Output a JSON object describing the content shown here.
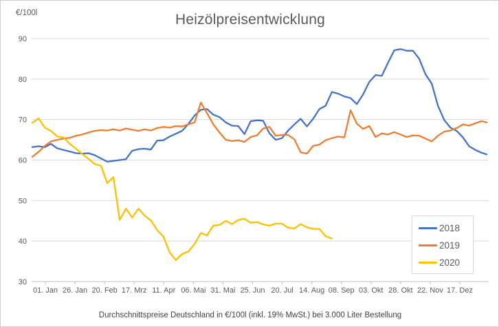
{
  "footer": {
    "caption": "Durchschnittspreise Deutschland in €/100l (inkl. 19% MwSt.) bei 3.000 Liter Bestellung"
  },
  "legend": {
    "items": [
      {
        "label": "2018",
        "color": "#4472C4"
      },
      {
        "label": "2019",
        "color": "#ED7D31"
      },
      {
        "label": "2020",
        "color": "#FFC000"
      }
    ]
  },
  "chart_data": {
    "type": "line",
    "title": "Heizölpreisentwicklung",
    "ylabel": "€/100l",
    "xlabel": "",
    "ylim": [
      30,
      90
    ],
    "y_ticks": [
      90,
      80,
      70,
      60,
      50,
      40,
      30
    ],
    "x_tick_labels": [
      "01. Jan",
      "26. Jan",
      "20. Feb",
      "17. Mrz",
      "11. Apr",
      "06. Mai",
      "31. Mai",
      "25. Jun",
      "20. Jul",
      "14. Aug",
      "08. Sep",
      "03. Okt",
      "28. Okt",
      "22. Nov",
      "17. Dez"
    ],
    "x_tick_interval_days": 25,
    "sample_interval_days": 5,
    "grid": "horizontal-only",
    "legend_position": "inside-right-bottom",
    "series": [
      {
        "name": "2018",
        "color": "#4472C4",
        "start_day": 0,
        "values": [
          63.2,
          63.4,
          63.2,
          64.0,
          62.9,
          62.5,
          62.1,
          61.7,
          61.6,
          61.7,
          61.2,
          60.4,
          59.6,
          59.8,
          60.0,
          60.2,
          62.3,
          62.7,
          62.8,
          62.6,
          64.8,
          64.9,
          65.8,
          66.5,
          67.2,
          68.9,
          71.0,
          72.4,
          72.6,
          71.2,
          70.6,
          69.3,
          68.5,
          68.4,
          66.4,
          69.6,
          69.8,
          69.7,
          66.6,
          65.0,
          65.4,
          67.3,
          68.8,
          70.2,
          68.3,
          70.2,
          72.6,
          73.4,
          76.8,
          76.4,
          75.7,
          75.3,
          73.8,
          76.2,
          79.3,
          81.0,
          80.8,
          84.0,
          87.1,
          87.4,
          87.0,
          87.0,
          85.0,
          81.2,
          78.9,
          73.4,
          69.9,
          68.0,
          67.2,
          65.6,
          63.4,
          62.5,
          61.8,
          61.4
        ]
      },
      {
        "name": "2019",
        "color": "#ED7D31",
        "start_day": 0,
        "values": [
          60.8,
          62.0,
          63.5,
          64.6,
          65.0,
          65.3,
          65.5,
          66.0,
          66.3,
          66.8,
          67.2,
          67.4,
          67.3,
          67.6,
          67.3,
          67.8,
          67.5,
          67.2,
          67.6,
          67.3,
          67.9,
          68.2,
          68.0,
          68.4,
          68.3,
          68.8,
          69.3,
          74.2,
          71.6,
          68.8,
          66.8,
          65.0,
          64.7,
          64.9,
          64.5,
          65.7,
          66.1,
          67.8,
          68.2,
          66.0,
          66.2,
          66.2,
          65.1,
          61.9,
          61.6,
          63.5,
          63.8,
          64.9,
          65.4,
          65.8,
          65.6,
          72.3,
          69.0,
          67.7,
          68.4,
          65.7,
          66.6,
          66.3,
          66.9,
          66.3,
          65.7,
          66.1,
          66.0,
          65.3,
          64.6,
          66.0,
          67.0,
          67.3,
          67.9,
          68.8,
          68.5,
          69.1,
          69.6,
          69.3
        ]
      },
      {
        "name": "2020",
        "color": "#FFC000",
        "start_day": 0,
        "values": [
          69.2,
          70.3,
          68.0,
          67.2,
          65.8,
          65.6,
          64.0,
          62.8,
          61.5,
          60.3,
          59.0,
          58.6,
          54.3,
          55.8,
          45.2,
          48.0,
          45.8,
          48.0,
          46.3,
          45.1,
          42.7,
          41.1,
          37.2,
          35.3,
          36.8,
          37.4,
          39.3,
          42.0,
          41.4,
          43.8,
          44.0,
          45.0,
          44.2,
          45.2,
          45.5,
          44.5,
          44.7,
          44.1,
          43.8,
          44.3,
          44.3,
          43.3,
          43.1,
          44.2,
          43.4,
          43.0,
          43.0,
          41.2,
          40.6
        ]
      }
    ]
  },
  "colors": {
    "title_text": "#595959",
    "axis_text": "#595959",
    "gridline": "#d9d9d9",
    "axis_line": "#bfbfbf",
    "chart_border": "#d0cece",
    "legend_border": "#d9d9d9",
    "footer_text": "#404040",
    "background": "#ffffff"
  }
}
